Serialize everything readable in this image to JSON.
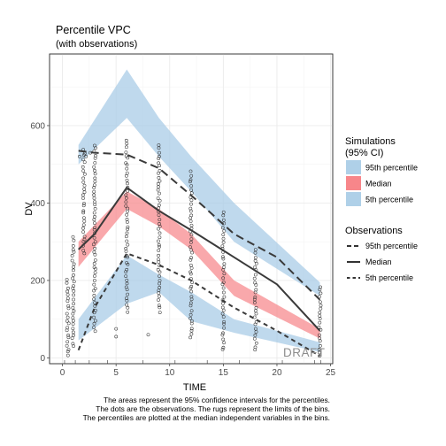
{
  "chart_data": {
    "type": "line",
    "title": "Percentile VPC",
    "subtitle": "(with observations)",
    "xlabel": "TIME",
    "ylabel": "DV",
    "xlim": [
      -1.2,
      25.2
    ],
    "ylim": [
      -15,
      785
    ],
    "x_ticks": [
      0,
      5,
      10,
      15,
      20,
      25
    ],
    "y_ticks": [
      0,
      200,
      400,
      600
    ],
    "grid": true,
    "watermark": "DRAFT",
    "bin_x": [
      1.5,
      3,
      6,
      9,
      12,
      16,
      20,
      24
    ],
    "simulation_ci": [
      {
        "name": "95th percentile",
        "color": "#a6cbe6",
        "x": [
          1.5,
          6,
          9,
          12,
          16,
          24
        ],
        "lower": [
          500,
          620,
          520,
          430,
          300,
          160
        ],
        "upper": [
          550,
          745,
          620,
          520,
          400,
          195
        ]
      },
      {
        "name": "Median",
        "color": "#f7868a",
        "x": [
          1.5,
          6,
          9,
          12,
          16,
          24
        ],
        "lower": [
          235,
          385,
          340,
          280,
          160,
          50
        ],
        "upper": [
          300,
          430,
          385,
          320,
          200,
          75
        ]
      },
      {
        "name": "5th percentile",
        "color": "#a6cbe6",
        "x": [
          1.5,
          6,
          9,
          12,
          16,
          24
        ],
        "lower": [
          45,
          140,
          170,
          95,
          65,
          15
        ],
        "upper": [
          100,
          265,
          215,
          170,
          100,
          40
        ]
      }
    ],
    "observed_percentiles": [
      {
        "name": "95th percentile",
        "dash": "long",
        "x": [
          1.5,
          3,
          6,
          9,
          12,
          16,
          20,
          24
        ],
        "y": [
          535,
          530,
          525,
          490,
          420,
          320,
          260,
          150
        ]
      },
      {
        "name": "Median",
        "dash": "solid",
        "x": [
          1.5,
          3,
          6,
          9,
          12,
          16,
          20,
          24
        ],
        "y": [
          280,
          320,
          440,
          380,
          330,
          260,
          190,
          70
        ]
      },
      {
        "name": "5th percentile",
        "dash": "short",
        "x": [
          1.5,
          3,
          6,
          9,
          12,
          16,
          20,
          24
        ],
        "y": [
          20,
          130,
          270,
          240,
          200,
          130,
          70,
          5
        ]
      }
    ],
    "observation_columns": [
      {
        "x": 0.5,
        "min": 5,
        "max": 200
      },
      {
        "x": 1,
        "min": 30,
        "max": 310
      },
      {
        "x": 2,
        "min": 270,
        "max": 540
      },
      {
        "x": 3,
        "min": 70,
        "max": 550
      },
      {
        "x": 6,
        "min": 120,
        "max": 560
      },
      {
        "x": 9,
        "min": 120,
        "max": 550
      },
      {
        "x": 12,
        "min": 50,
        "max": 480
      },
      {
        "x": 15,
        "min": 20,
        "max": 375
      },
      {
        "x": 18,
        "min": 20,
        "max": 280
      },
      {
        "x": 24,
        "min": 5,
        "max": 185
      }
    ],
    "observation_extras": [
      {
        "x": 5,
        "y": 75
      },
      {
        "x": 5,
        "y": 55
      },
      {
        "x": 8,
        "y": 60
      },
      {
        "x": 1.6,
        "y": 520
      },
      {
        "x": 2.2,
        "y": 520
      },
      {
        "x": 2.6,
        "y": 530
      }
    ]
  },
  "legend": {
    "simulations_title_1": "Simulations",
    "simulations_title_2": "(95% CI)",
    "sim_items": [
      "95th percentile",
      "Median",
      "5th percentile"
    ],
    "sim_colors": [
      "#a6cbe6",
      "#f7868a",
      "#a6cbe6"
    ],
    "observations_title": "Observations",
    "obs_items": [
      "95th percentile",
      "Median",
      "5th percentile"
    ]
  },
  "caption": [
    "The areas represent the 95% confidence intervals for the percentiles.",
    "The dots are the observations. The rugs represent the limits of the bins.",
    "The percentiles are plotted at the median independent variables in the bins."
  ]
}
